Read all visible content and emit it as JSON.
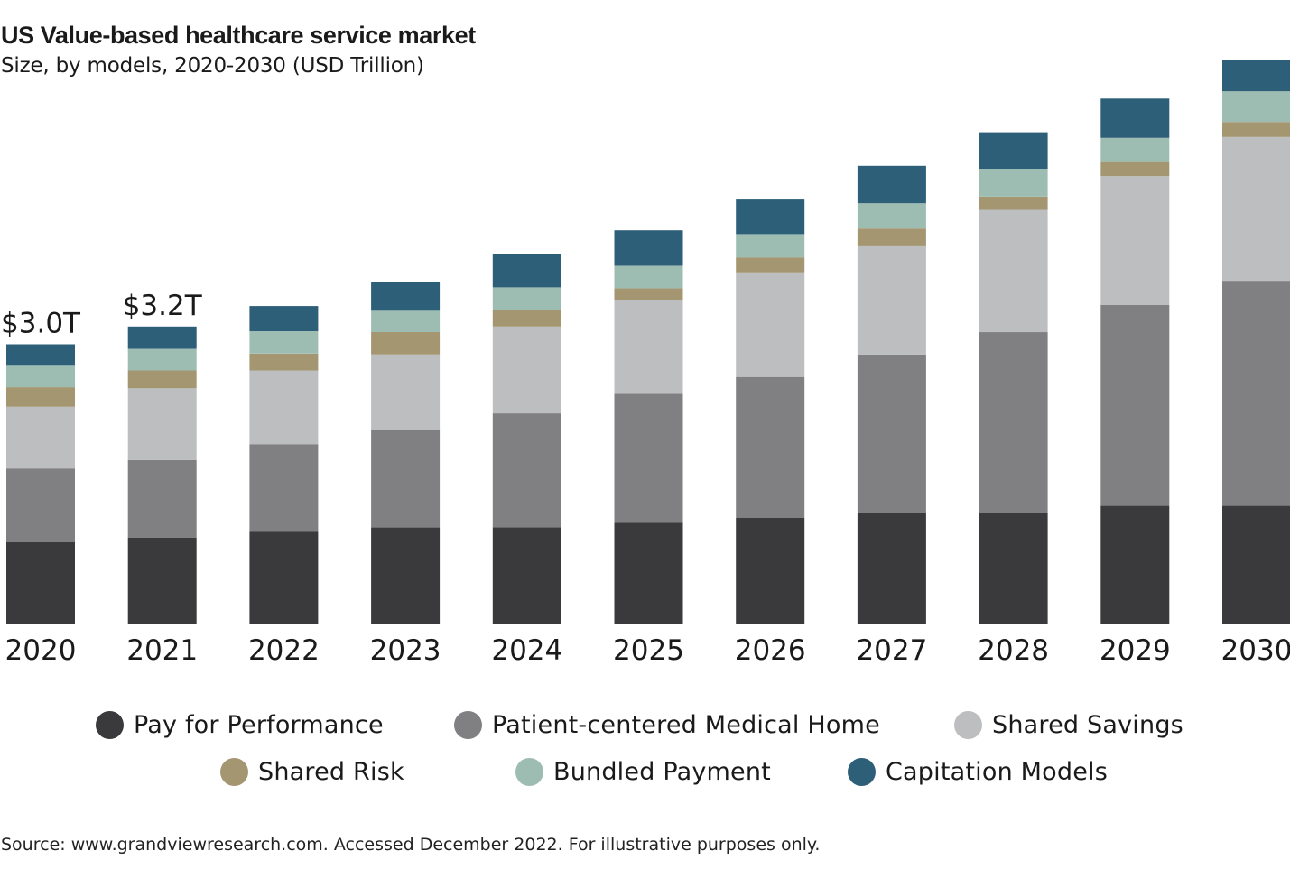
{
  "chart_data": {
    "type": "bar",
    "stacked": true,
    "title": "US Value-based healthcare service market",
    "subtitle": "Size, by models, 2020-2030 (USD Trillion)",
    "categories": [
      "2020",
      "2021",
      "2022",
      "2023",
      "2024",
      "2025",
      "2026",
      "2027",
      "2028",
      "2029",
      "2030"
    ],
    "series": [
      {
        "name": "Pay for Performance",
        "color": "#3a3a3c",
        "values": [
          0.88,
          0.93,
          0.99,
          1.04,
          1.04,
          1.09,
          1.14,
          1.19,
          1.19,
          1.27,
          1.27
        ]
      },
      {
        "name": "Patient-centered Medical Home",
        "color": "#808083",
        "values": [
          0.79,
          0.83,
          0.94,
          1.04,
          1.22,
          1.38,
          1.51,
          1.7,
          1.94,
          2.15,
          2.41
        ]
      },
      {
        "name": "Shared Savings",
        "color": "#bdbec0",
        "values": [
          0.66,
          0.77,
          0.79,
          0.81,
          0.93,
          1.0,
          1.12,
          1.16,
          1.31,
          1.38,
          1.54
        ]
      },
      {
        "name": "Shared Risk",
        "color": "#a49670",
        "values": [
          0.21,
          0.19,
          0.18,
          0.24,
          0.18,
          0.13,
          0.16,
          0.19,
          0.14,
          0.16,
          0.16
        ]
      },
      {
        "name": "Bundled Payment",
        "color": "#9dbdb2",
        "values": [
          0.23,
          0.23,
          0.24,
          0.23,
          0.24,
          0.24,
          0.25,
          0.27,
          0.3,
          0.25,
          0.33
        ]
      },
      {
        "name": "Capitation Models",
        "color": "#2e5f78",
        "values": [
          0.23,
          0.24,
          0.27,
          0.31,
          0.36,
          0.38,
          0.37,
          0.4,
          0.39,
          0.42,
          0.33
        ]
      }
    ],
    "data_labels": [
      {
        "category": "2020",
        "text": "$3.0T"
      },
      {
        "category": "2021",
        "text": "$3.2T"
      }
    ],
    "ylim": [
      0,
      6.2
    ],
    "grid": false,
    "legend_position": "bottom"
  },
  "source": "Source: www.grandviewresearch.com. Accessed December 2022. For illustrative purposes only."
}
